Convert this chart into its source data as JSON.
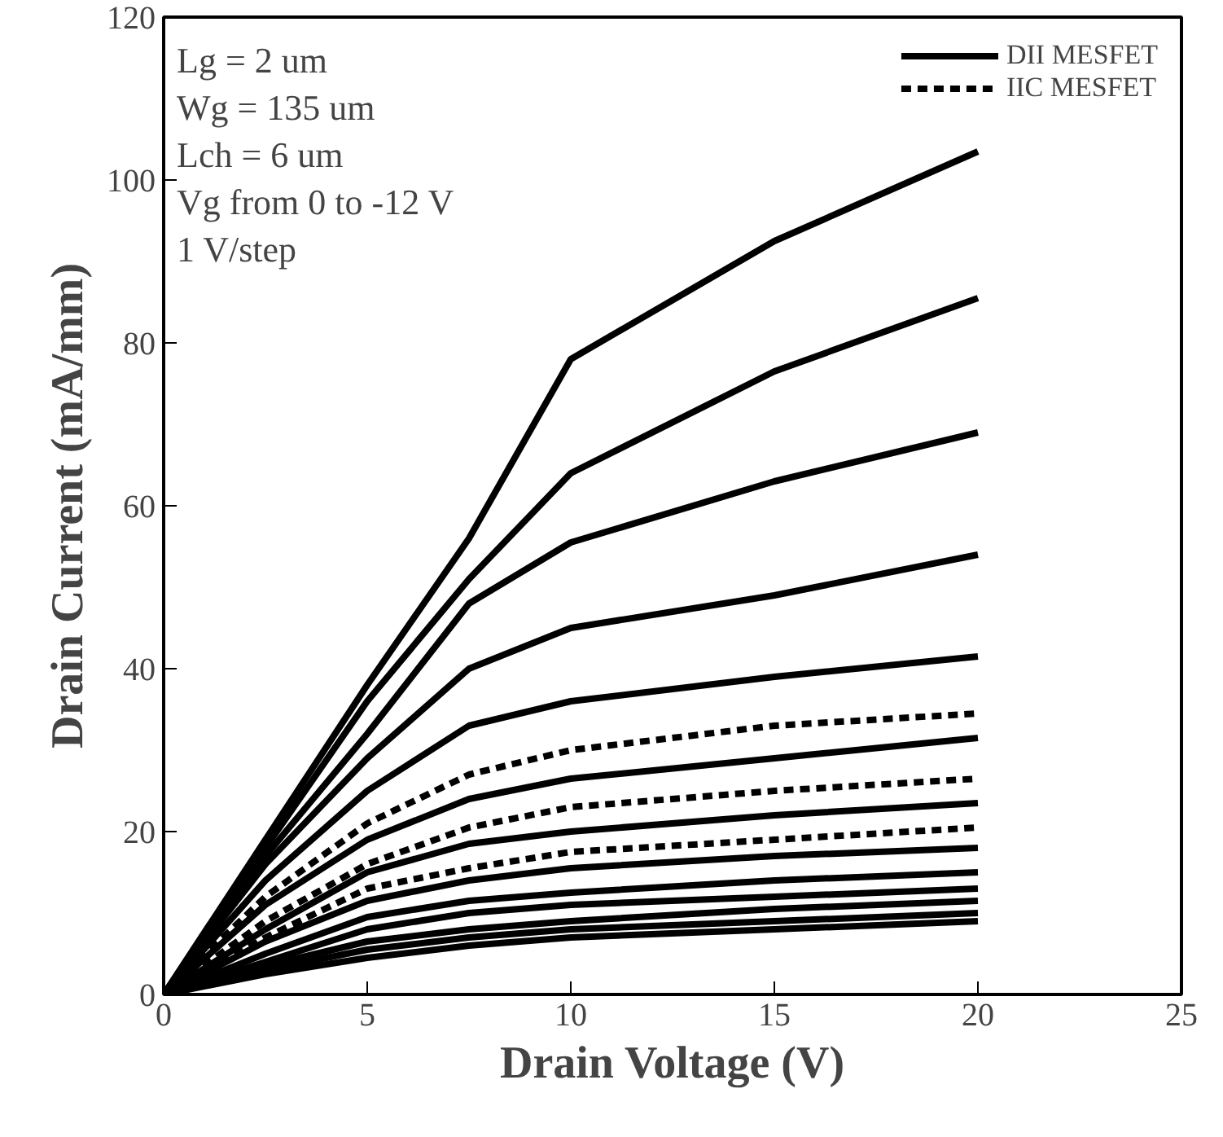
{
  "chart_data": {
    "type": "line",
    "xlabel": "Drain Voltage (V)",
    "ylabel": "Drain Current (mA/mm)",
    "x": [
      0,
      2.5,
      5,
      7.5,
      10,
      15,
      20
    ],
    "xlim": [
      0,
      25
    ],
    "ylim": [
      0,
      120
    ],
    "xticks": [
      0,
      5,
      10,
      15,
      20,
      25
    ],
    "yticks": [
      0,
      20,
      40,
      60,
      80,
      100,
      120
    ],
    "grid": false,
    "legend": "top right",
    "marker": "none",
    "annotations": [
      "Lg = 2 um",
      "Wg = 135 um",
      "Lch = 6 um",
      "Vg  from 0 to -12 V",
      "1 V/step"
    ],
    "series": [
      {
        "name": "DII MESFET",
        "color": "#000000",
        "line_style": "solid",
        "values": [
          0,
          19,
          38,
          56,
          78,
          92.5,
          103.5
        ]
      },
      {
        "color": "#000000",
        "line_style": "solid",
        "values": [
          0,
          18,
          36,
          51,
          64,
          76.5,
          85.5
        ]
      },
      {
        "color": "#000000",
        "line_style": "solid",
        "values": [
          0,
          17,
          32,
          48,
          55.5,
          63,
          69
        ]
      },
      {
        "color": "#000000",
        "line_style": "solid",
        "values": [
          0,
          16,
          29,
          40,
          45,
          49,
          54
        ]
      },
      {
        "color": "#000000",
        "line_style": "solid",
        "values": [
          0,
          14,
          25,
          33,
          36,
          39,
          41.5
        ]
      },
      {
        "color": "#000000",
        "line_style": "solid",
        "values": [
          0,
          11,
          19,
          24,
          26.5,
          29,
          31.5
        ]
      },
      {
        "color": "#000000",
        "line_style": "solid",
        "values": [
          0,
          8,
          15,
          18.5,
          20,
          22,
          23.5
        ]
      },
      {
        "color": "#000000",
        "line_style": "solid",
        "values": [
          0,
          6.5,
          11.5,
          14,
          15.5,
          17,
          18
        ]
      },
      {
        "color": "#000000",
        "line_style": "solid",
        "values": [
          0,
          5,
          9.5,
          11.5,
          12.5,
          14,
          15
        ]
      },
      {
        "color": "#000000",
        "line_style": "solid",
        "values": [
          0,
          4,
          8,
          10,
          11,
          12,
          13
        ]
      },
      {
        "color": "#000000",
        "line_style": "solid",
        "values": [
          0,
          3.5,
          6.5,
          8,
          9,
          10.5,
          11.5
        ]
      },
      {
        "color": "#000000",
        "line_style": "solid",
        "values": [
          0,
          3,
          5.5,
          7,
          8,
          9,
          10
        ]
      },
      {
        "color": "#000000",
        "line_style": "solid",
        "values": [
          0,
          2.5,
          4.5,
          6,
          7,
          8,
          9
        ]
      },
      {
        "name": "IIC MESFET",
        "color": "#000000",
        "line_style": "dashed",
        "values": [
          0,
          12,
          21,
          27,
          30,
          33,
          34.5
        ]
      },
      {
        "color": "#000000",
        "line_style": "dashed",
        "values": [
          0,
          9,
          16,
          20.5,
          23,
          25,
          26.5
        ]
      },
      {
        "color": "#000000",
        "line_style": "dashed",
        "values": [
          0,
          7,
          13,
          15.5,
          17.5,
          19,
          20.5
        ]
      }
    ]
  }
}
